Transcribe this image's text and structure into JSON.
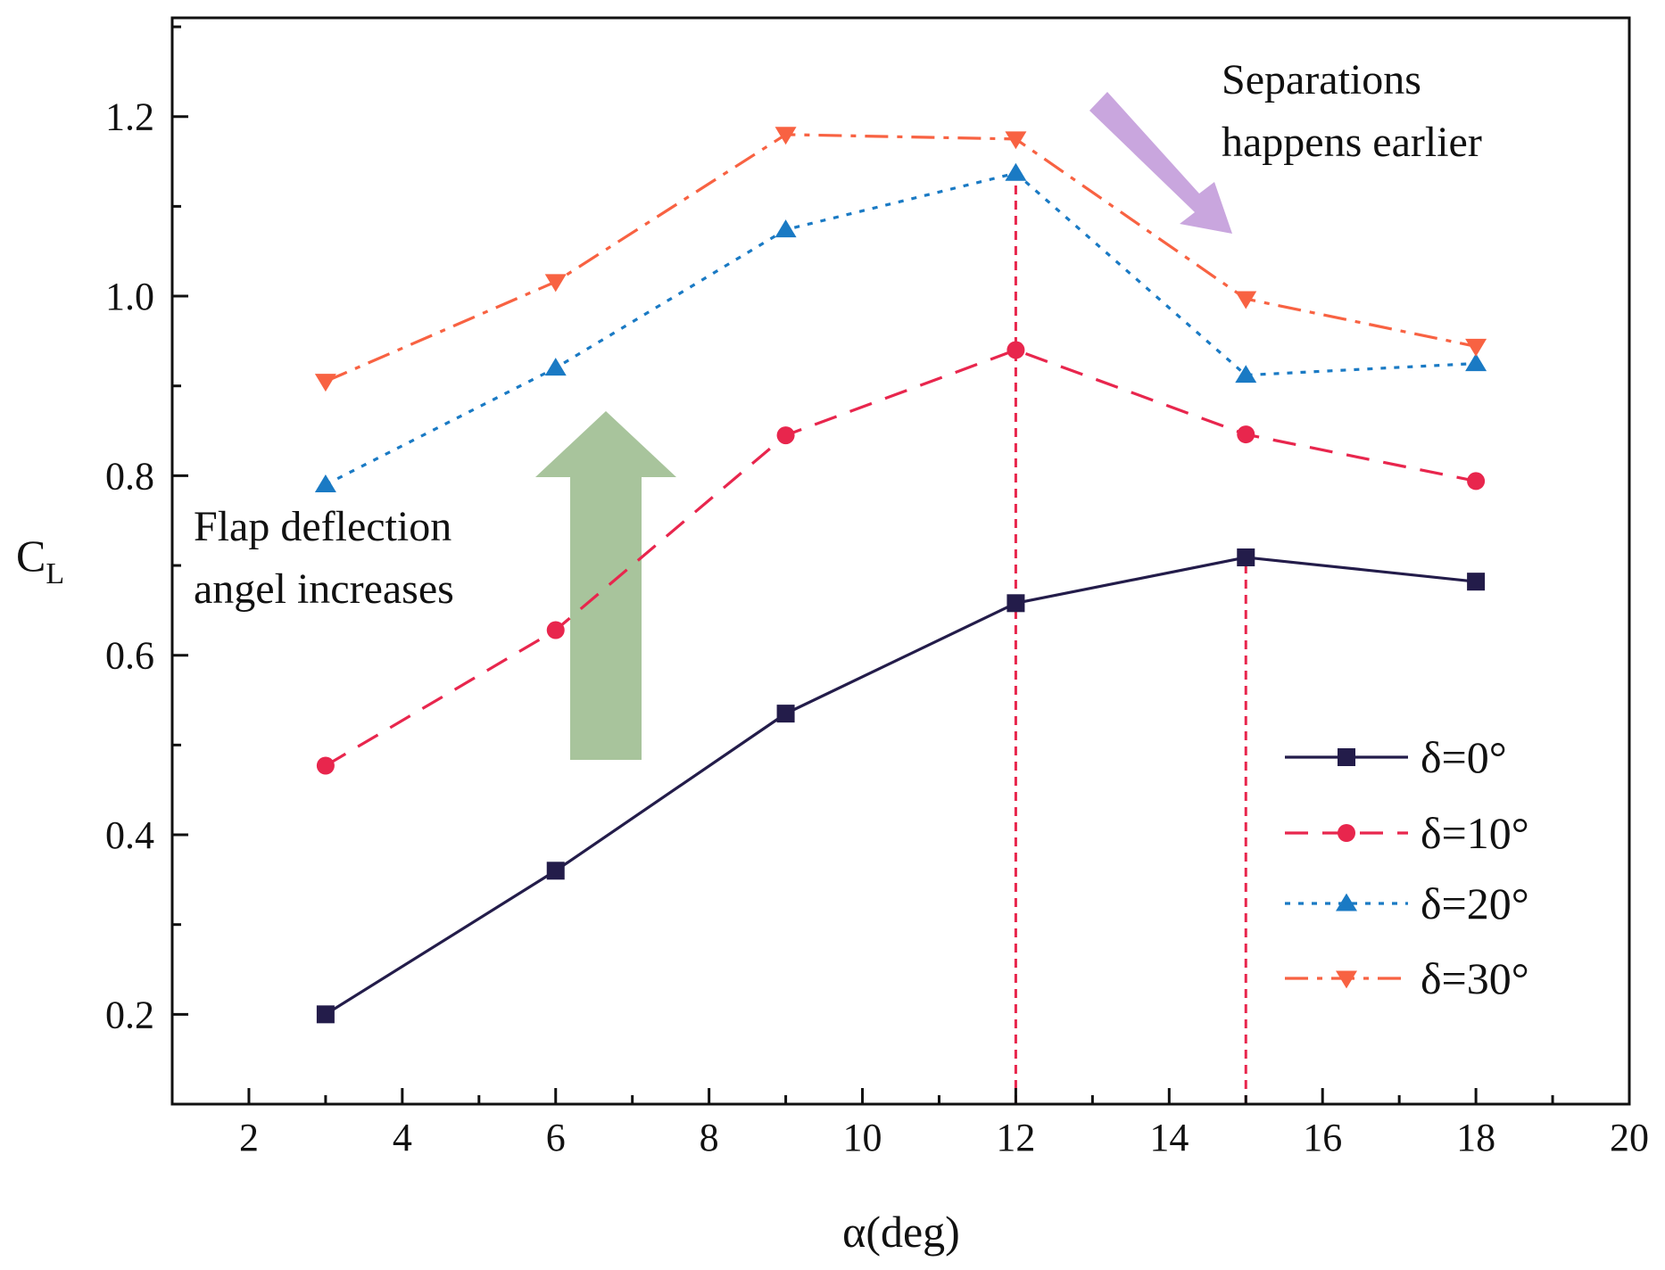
{
  "chart_data": {
    "type": "line",
    "title": "",
    "xlabel": "α(deg)",
    "ylabel": {
      "main": "C",
      "sub": "L"
    },
    "xlim": [
      1,
      20
    ],
    "ylim": [
      0.1,
      1.31
    ],
    "x_ticks": [
      2,
      4,
      6,
      8,
      10,
      12,
      14,
      16,
      18,
      20
    ],
    "y_ticks": [
      0.2,
      0.4,
      0.6,
      0.8,
      1.0,
      1.2
    ],
    "y_tick_labels": [
      "0.2",
      "0.4",
      "0.6",
      "0.8",
      "1.0",
      "1.2"
    ],
    "x": [
      3,
      6,
      9,
      12,
      15,
      18
    ],
    "series": [
      {
        "name": "δ=0°",
        "values": [
          0.2,
          0.36,
          0.535,
          0.658,
          0.709,
          0.682
        ],
        "color": "#231c4a",
        "dash": "solid",
        "marker": "square"
      },
      {
        "name": "δ=10°",
        "values": [
          0.477,
          0.628,
          0.845,
          0.94,
          0.846,
          0.794
        ],
        "color": "#e8264d",
        "dash": "dash",
        "marker": "circle"
      },
      {
        "name": "δ=20°",
        "values": [
          0.79,
          0.92,
          1.074,
          1.137,
          0.912,
          0.925
        ],
        "color": "#1a7ac4",
        "dash": "dot",
        "marker": "triangle-up"
      },
      {
        "name": "δ=30°",
        "values": [
          0.905,
          1.016,
          1.18,
          1.175,
          0.997,
          0.944
        ],
        "color": "#f86242",
        "dash": "dashdot",
        "marker": "triangle-down"
      }
    ],
    "reference_lines": [
      {
        "x": 12,
        "y_from": 0.1,
        "y_to": 1.14,
        "color": "#e8264d"
      },
      {
        "x": 15,
        "y_from": 0.1,
        "y_to": 0.709,
        "color": "#e8264d"
      }
    ],
    "annotations": [
      {
        "lines": [
          "Flap deflection",
          "angel increases"
        ],
        "arrow": "up",
        "arrow_color": "#a8c49c"
      },
      {
        "lines": [
          "Separations",
          "happens earlier"
        ],
        "arrow": "down-right",
        "arrow_color": "#c9a6de"
      }
    ],
    "legend_position": "bottom-right",
    "grid": false
  }
}
